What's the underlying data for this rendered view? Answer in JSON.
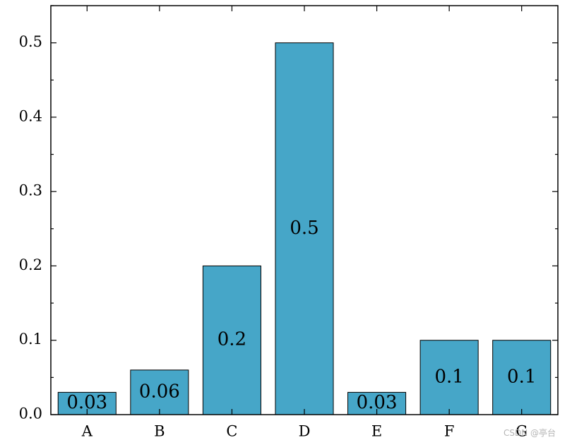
{
  "chart_data": {
    "type": "bar",
    "categories": [
      "A",
      "B",
      "C",
      "D",
      "E",
      "F",
      "G"
    ],
    "values": [
      0.03,
      0.06,
      0.2,
      0.5,
      0.03,
      0.1,
      0.1
    ],
    "data_labels": [
      "0.03",
      "0.06",
      "0.2",
      "0.5",
      "0.03",
      "0.1",
      "0.1"
    ],
    "y_ticks": [
      0.0,
      0.1,
      0.2,
      0.3,
      0.4,
      0.5
    ],
    "y_tick_labels": [
      "0.0",
      "0.1",
      "0.2",
      "0.3",
      "0.4",
      "0.5"
    ],
    "ylim": [
      0,
      0.55
    ],
    "grid": false,
    "bar_color": "#46a6c8",
    "edge_color": "#000000"
  },
  "watermark": "CSDN @亭台"
}
